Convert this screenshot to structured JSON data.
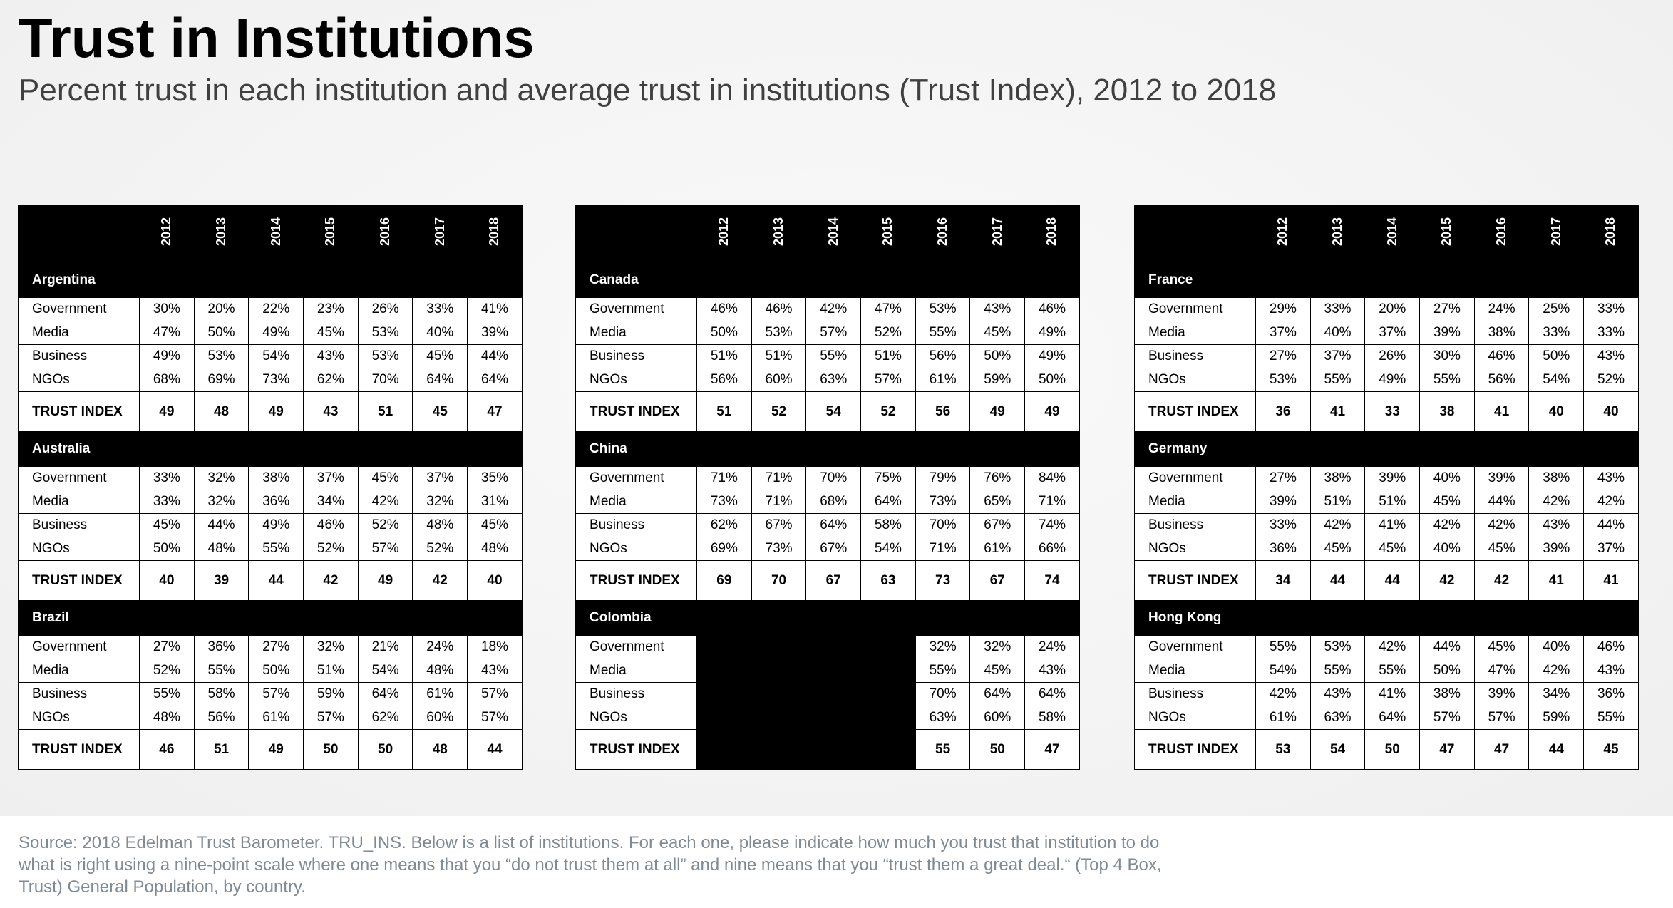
{
  "header": {
    "title": "Trust in Institutions",
    "subtitle": "Percent trust in each institution and average trust in institutions (Trust Index), 2012 to 2018"
  },
  "tables": [
    {
      "years": [
        "2012",
        "2013",
        "2014",
        "2015",
        "2016",
        "2017",
        "2018"
      ],
      "groups": [
        {
          "country": "Argentina",
          "rows": [
            {
              "label": "Government",
              "values": [
                "30%",
                "20%",
                "22%",
                "23%",
                "26%",
                "33%",
                "41%"
              ]
            },
            {
              "label": "Media",
              "values": [
                "47%",
                "50%",
                "49%",
                "45%",
                "53%",
                "40%",
                "39%"
              ]
            },
            {
              "label": "Business",
              "values": [
                "49%",
                "53%",
                "54%",
                "43%",
                "53%",
                "45%",
                "44%"
              ]
            },
            {
              "label": "NGOs",
              "values": [
                "68%",
                "69%",
                "73%",
                "62%",
                "70%",
                "64%",
                "64%"
              ]
            },
            {
              "label": "TRUST INDEX",
              "values": [
                49,
                48,
                49,
                43,
                51,
                45,
                47
              ]
            }
          ]
        },
        {
          "country": "Australia",
          "rows": [
            {
              "label": "Government",
              "values": [
                "33%",
                "32%",
                "38%",
                "37%",
                "45%",
                "37%",
                "35%"
              ]
            },
            {
              "label": "Media",
              "values": [
                "33%",
                "32%",
                "36%",
                "34%",
                "42%",
                "32%",
                "31%"
              ]
            },
            {
              "label": "Business",
              "values": [
                "45%",
                "44%",
                "49%",
                "46%",
                "52%",
                "48%",
                "45%"
              ]
            },
            {
              "label": "NGOs",
              "values": [
                "50%",
                "48%",
                "55%",
                "52%",
                "57%",
                "52%",
                "48%"
              ]
            },
            {
              "label": "TRUST INDEX",
              "values": [
                40,
                39,
                44,
                42,
                49,
                42,
                40
              ]
            }
          ]
        },
        {
          "country": "Brazil",
          "rows": [
            {
              "label": "Government",
              "values": [
                "27%",
                "36%",
                "27%",
                "32%",
                "21%",
                "24%",
                "18%"
              ]
            },
            {
              "label": "Media",
              "values": [
                "52%",
                "55%",
                "50%",
                "51%",
                "54%",
                "48%",
                "43%"
              ]
            },
            {
              "label": "Business",
              "values": [
                "55%",
                "58%",
                "57%",
                "59%",
                "64%",
                "61%",
                "57%"
              ]
            },
            {
              "label": "NGOs",
              "values": [
                "48%",
                "56%",
                "61%",
                "57%",
                "62%",
                "60%",
                "57%"
              ]
            },
            {
              "label": "TRUST INDEX",
              "values": [
                46,
                51,
                49,
                50,
                50,
                48,
                44
              ]
            }
          ]
        }
      ]
    },
    {
      "years": [
        "2012",
        "2013",
        "2014",
        "2015",
        "2016",
        "2017",
        "2018"
      ],
      "groups": [
        {
          "country": "Canada",
          "rows": [
            {
              "label": "Government",
              "values": [
                "46%",
                "46%",
                "42%",
                "47%",
                "53%",
                "43%",
                "46%"
              ]
            },
            {
              "label": "Media",
              "values": [
                "50%",
                "53%",
                "57%",
                "52%",
                "55%",
                "45%",
                "49%"
              ]
            },
            {
              "label": "Business",
              "values": [
                "51%",
                "51%",
                "55%",
                "51%",
                "56%",
                "50%",
                "49%"
              ]
            },
            {
              "label": "NGOs",
              "values": [
                "56%",
                "60%",
                "63%",
                "57%",
                "61%",
                "59%",
                "50%"
              ]
            },
            {
              "label": "TRUST INDEX",
              "values": [
                51,
                52,
                54,
                52,
                56,
                49,
                49
              ]
            }
          ]
        },
        {
          "country": "China",
          "rows": [
            {
              "label": "Government",
              "values": [
                "71%",
                "71%",
                "70%",
                "75%",
                "79%",
                "76%",
                "84%"
              ]
            },
            {
              "label": "Media",
              "values": [
                "73%",
                "71%",
                "68%",
                "64%",
                "73%",
                "65%",
                "71%"
              ]
            },
            {
              "label": "Business",
              "values": [
                "62%",
                "67%",
                "64%",
                "58%",
                "70%",
                "67%",
                "74%"
              ]
            },
            {
              "label": "NGOs",
              "values": [
                "69%",
                "73%",
                "67%",
                "54%",
                "71%",
                "61%",
                "66%"
              ]
            },
            {
              "label": "TRUST INDEX",
              "values": [
                69,
                70,
                67,
                63,
                73,
                67,
                74
              ]
            }
          ]
        },
        {
          "country": "Colombia",
          "rows": [
            {
              "label": "Government",
              "values": [
                null,
                null,
                null,
                null,
                "32%",
                "32%",
                "24%"
              ]
            },
            {
              "label": "Media",
              "values": [
                null,
                null,
                null,
                null,
                "55%",
                "45%",
                "43%"
              ]
            },
            {
              "label": "Business",
              "values": [
                null,
                null,
                null,
                null,
                "70%",
                "64%",
                "64%"
              ]
            },
            {
              "label": "NGOs",
              "values": [
                null,
                null,
                null,
                null,
                "63%",
                "60%",
                "58%"
              ]
            },
            {
              "label": "TRUST INDEX",
              "values": [
                null,
                null,
                null,
                null,
                55,
                50,
                47
              ]
            }
          ]
        }
      ]
    },
    {
      "years": [
        "2012",
        "2013",
        "2014",
        "2015",
        "2016",
        "2017",
        "2018"
      ],
      "groups": [
        {
          "country": "France",
          "rows": [
            {
              "label": "Government",
              "values": [
                "29%",
                "33%",
                "20%",
                "27%",
                "24%",
                "25%",
                "33%"
              ]
            },
            {
              "label": "Media",
              "values": [
                "37%",
                "40%",
                "37%",
                "39%",
                "38%",
                "33%",
                "33%"
              ]
            },
            {
              "label": "Business",
              "values": [
                "27%",
                "37%",
                "26%",
                "30%",
                "46%",
                "50%",
                "43%"
              ]
            },
            {
              "label": "NGOs",
              "values": [
                "53%",
                "55%",
                "49%",
                "55%",
                "56%",
                "54%",
                "52%"
              ]
            },
            {
              "label": "TRUST INDEX",
              "values": [
                36,
                41,
                33,
                38,
                41,
                40,
                40
              ]
            }
          ]
        },
        {
          "country": "Germany",
          "rows": [
            {
              "label": "Government",
              "values": [
                "27%",
                "38%",
                "39%",
                "40%",
                "39%",
                "38%",
                "43%"
              ]
            },
            {
              "label": "Media",
              "values": [
                "39%",
                "51%",
                "51%",
                "45%",
                "44%",
                "42%",
                "42%"
              ]
            },
            {
              "label": "Business",
              "values": [
                "33%",
                "42%",
                "41%",
                "42%",
                "42%",
                "43%",
                "44%"
              ]
            },
            {
              "label": "NGOs",
              "values": [
                "36%",
                "45%",
                "45%",
                "40%",
                "45%",
                "39%",
                "37%"
              ]
            },
            {
              "label": "TRUST INDEX",
              "values": [
                34,
                44,
                44,
                42,
                42,
                41,
                41
              ]
            }
          ]
        },
        {
          "country": "Hong Kong",
          "rows": [
            {
              "label": "Government",
              "values": [
                "55%",
                "53%",
                "42%",
                "44%",
                "45%",
                "40%",
                "46%"
              ]
            },
            {
              "label": "Media",
              "values": [
                "54%",
                "55%",
                "55%",
                "50%",
                "47%",
                "42%",
                "43%"
              ]
            },
            {
              "label": "Business",
              "values": [
                "42%",
                "43%",
                "41%",
                "38%",
                "39%",
                "34%",
                "36%"
              ]
            },
            {
              "label": "NGOs",
              "values": [
                "61%",
                "63%",
                "64%",
                "57%",
                "57%",
                "59%",
                "55%"
              ]
            },
            {
              "label": "TRUST INDEX",
              "values": [
                53,
                54,
                50,
                47,
                47,
                44,
                45
              ]
            }
          ]
        }
      ]
    }
  ],
  "source": "Source: 2018 Edelman Trust Barometer. TRU_INS. Below is a list of institutions. For each one, please indicate how much you trust that institution to do what is right using a nine-point scale where one means that you “do not trust them at all” and nine means that you “trust them a great deal.“ (Top 4 Box, Trust) General Population, by country."
}
